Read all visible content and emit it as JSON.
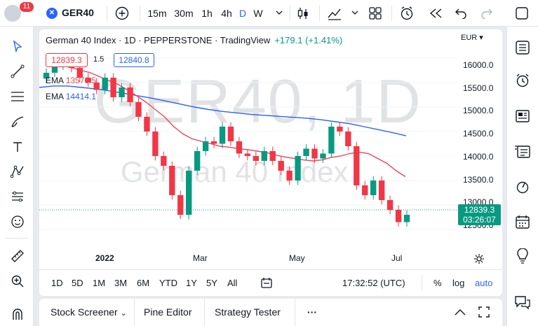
{
  "header": {
    "notification_count": "11",
    "symbol": "GER40",
    "intervals": [
      "15m",
      "30m",
      "1h",
      "4h",
      "D",
      "W"
    ],
    "active_interval": "D"
  },
  "chart": {
    "title": "German 40 Index · 1D · PEPPERSTONE · TradingView",
    "change": "+179.1 (+1.41%)",
    "bid": "12839.3",
    "spread": "1.5",
    "ask": "12840.8",
    "ema1_label": "EMA",
    "ema1_value": "13576.5",
    "ema2_label": "EMA",
    "ema2_value": "14414.1",
    "currency": "EUR",
    "last_price": "12839.3",
    "countdown": "03:26:07",
    "watermark_symbol": "GER40, 1D",
    "watermark_name": "German 40 Index",
    "y_ticks": [
      "16000.0",
      "15500.0",
      "15000.0",
      "14500.0",
      "14000.0",
      "13500.0",
      "13000.0",
      "12500.0"
    ],
    "x_ticks": [
      "2022",
      "Mar",
      "May",
      "Jul"
    ],
    "colors": {
      "up": "#089981",
      "down": "#f23645",
      "ema_short": "#e8475b",
      "ema_long": "#2962ff",
      "accent": "#2962ff"
    }
  },
  "range_bar": {
    "ranges": [
      "1D",
      "5D",
      "1M",
      "3M",
      "6M",
      "YTD",
      "1Y",
      "5Y",
      "All"
    ],
    "time": "17:32:52 (UTC)",
    "percent": "%",
    "log": "log",
    "auto": "auto"
  },
  "bottom_panel": {
    "screener": "Stock Screener",
    "pine": "Pine Editor",
    "strategy": "Strategy Tester",
    "more": "···"
  },
  "chart_data": {
    "type": "candlestick",
    "ylim": [
      12300,
      16300
    ],
    "x_labels": [
      "2022",
      "Mar",
      "May",
      "Jul"
    ],
    "close_series": [
      15700,
      15850,
      16000,
      15800,
      15600,
      15500,
      15350,
      15600,
      15200,
      15400,
      15100,
      14800,
      14500,
      14000,
      13800,
      13200,
      12800,
      13700,
      14100,
      14300,
      14250,
      14600,
      14300,
      14050,
      14000,
      13900,
      14100,
      13900,
      13700,
      13500,
      14000,
      14150,
      13950,
      14050,
      14600,
      14500,
      14200,
      13400,
      13200,
      13500,
      13100,
      12900,
      12650,
      12800
    ],
    "ema_short": [
      15900,
      15850,
      15800,
      15750,
      15700,
      15620,
      15540,
      15460,
      15350,
      15230,
      15100,
      14950,
      14800,
      14600,
      14450,
      14350,
      14300,
      14250,
      14200,
      14180,
      14150,
      14130,
      14100,
      14070,
      14020,
      13980,
      13950,
      13920,
      13900,
      13920,
      13970,
      14000,
      14050,
      14080,
      14050,
      13950,
      13850,
      13700,
      13576.5
    ],
    "ema_long": [
      15400,
      15430,
      15430,
      15400,
      15370,
      15330,
      15280,
      15230,
      15180,
      15120,
      15060,
      15000,
      14950,
      14910,
      14880,
      14850,
      14830,
      14810,
      14790,
      14770,
      14740,
      14700,
      14660,
      14600,
      14540,
      14480,
      14414.1
    ]
  }
}
